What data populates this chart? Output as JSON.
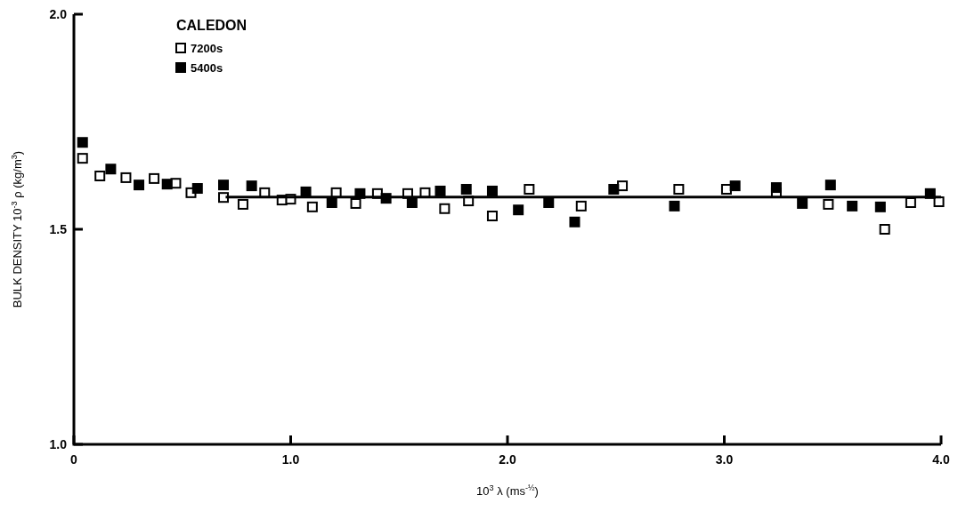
{
  "chart_data": {
    "type": "scatter",
    "xlabel": "10$^{3}$ λ (ms$^{-½}$)",
    "ylabel": "BULK DENSITY 10$^{-3}$ ρ (kg/m$^{3}$)",
    "legend_title": "CALEDON",
    "legend": "top left",
    "marker": "square",
    "grid": false,
    "xlim": [
      0,
      4
    ],
    "xticks": [
      0,
      {
        "value": 1,
        "label": "1.0"
      },
      {
        "value": 2,
        "label": "2.0"
      },
      {
        "value": 3,
        "label": "3.0"
      },
      {
        "value": 4,
        "label": "4.0"
      }
    ],
    "ylim": [
      1,
      2
    ],
    "yticks": [
      {
        "value": 1,
        "label": "1.0"
      },
      {
        "value": 1.5,
        "label": "1.5"
      },
      {
        "value": 2,
        "label": "2.0"
      }
    ],
    "series": [
      {
        "name": "7200s",
        "color": "#ffffff",
        "x": [
          0.04,
          0.12,
          0.24,
          0.37,
          0.47,
          0.54,
          0.69,
          0.78,
          0.88,
          0.96,
          1.0,
          1.1,
          1.21,
          1.3,
          1.4,
          1.54,
          1.62,
          1.71,
          1.82,
          1.93,
          2.1,
          2.34,
          2.53,
          2.79,
          3.01,
          3.24,
          3.48,
          3.74,
          3.86,
          3.99
        ],
        "values": [
          1.665,
          1.624,
          1.62,
          1.618,
          1.607,
          1.585,
          1.574,
          1.558,
          1.585,
          1.568,
          1.57,
          1.552,
          1.585,
          1.56,
          1.583,
          1.583,
          1.585,
          1.548,
          1.566,
          1.531,
          1.593,
          1.554,
          1.601,
          1.593,
          1.593,
          1.585,
          1.558,
          1.5,
          1.562,
          1.564
        ]
      },
      {
        "name": "5400s",
        "color": "#000000",
        "x": [
          0.04,
          0.17,
          0.3,
          0.43,
          0.57,
          0.69,
          0.82,
          1.07,
          1.19,
          1.32,
          1.44,
          1.56,
          1.69,
          1.81,
          1.93,
          2.05,
          2.19,
          2.31,
          2.49,
          2.77,
          3.05,
          3.24,
          3.36,
          3.49,
          3.59,
          3.72,
          3.95
        ],
        "values": [
          1.702,
          1.64,
          1.603,
          1.605,
          1.595,
          1.603,
          1.601,
          1.587,
          1.562,
          1.583,
          1.572,
          1.562,
          1.589,
          1.593,
          1.589,
          1.545,
          1.562,
          1.517,
          1.593,
          1.554,
          1.601,
          1.597,
          1.56,
          1.603,
          1.554,
          1.552,
          1.583
        ]
      },
      {
        "type": "line",
        "marker": "none",
        "color": "#000000",
        "x": [
          0.7,
          4.0
        ],
        "values": [
          1.575,
          1.575
        ]
      }
    ]
  }
}
